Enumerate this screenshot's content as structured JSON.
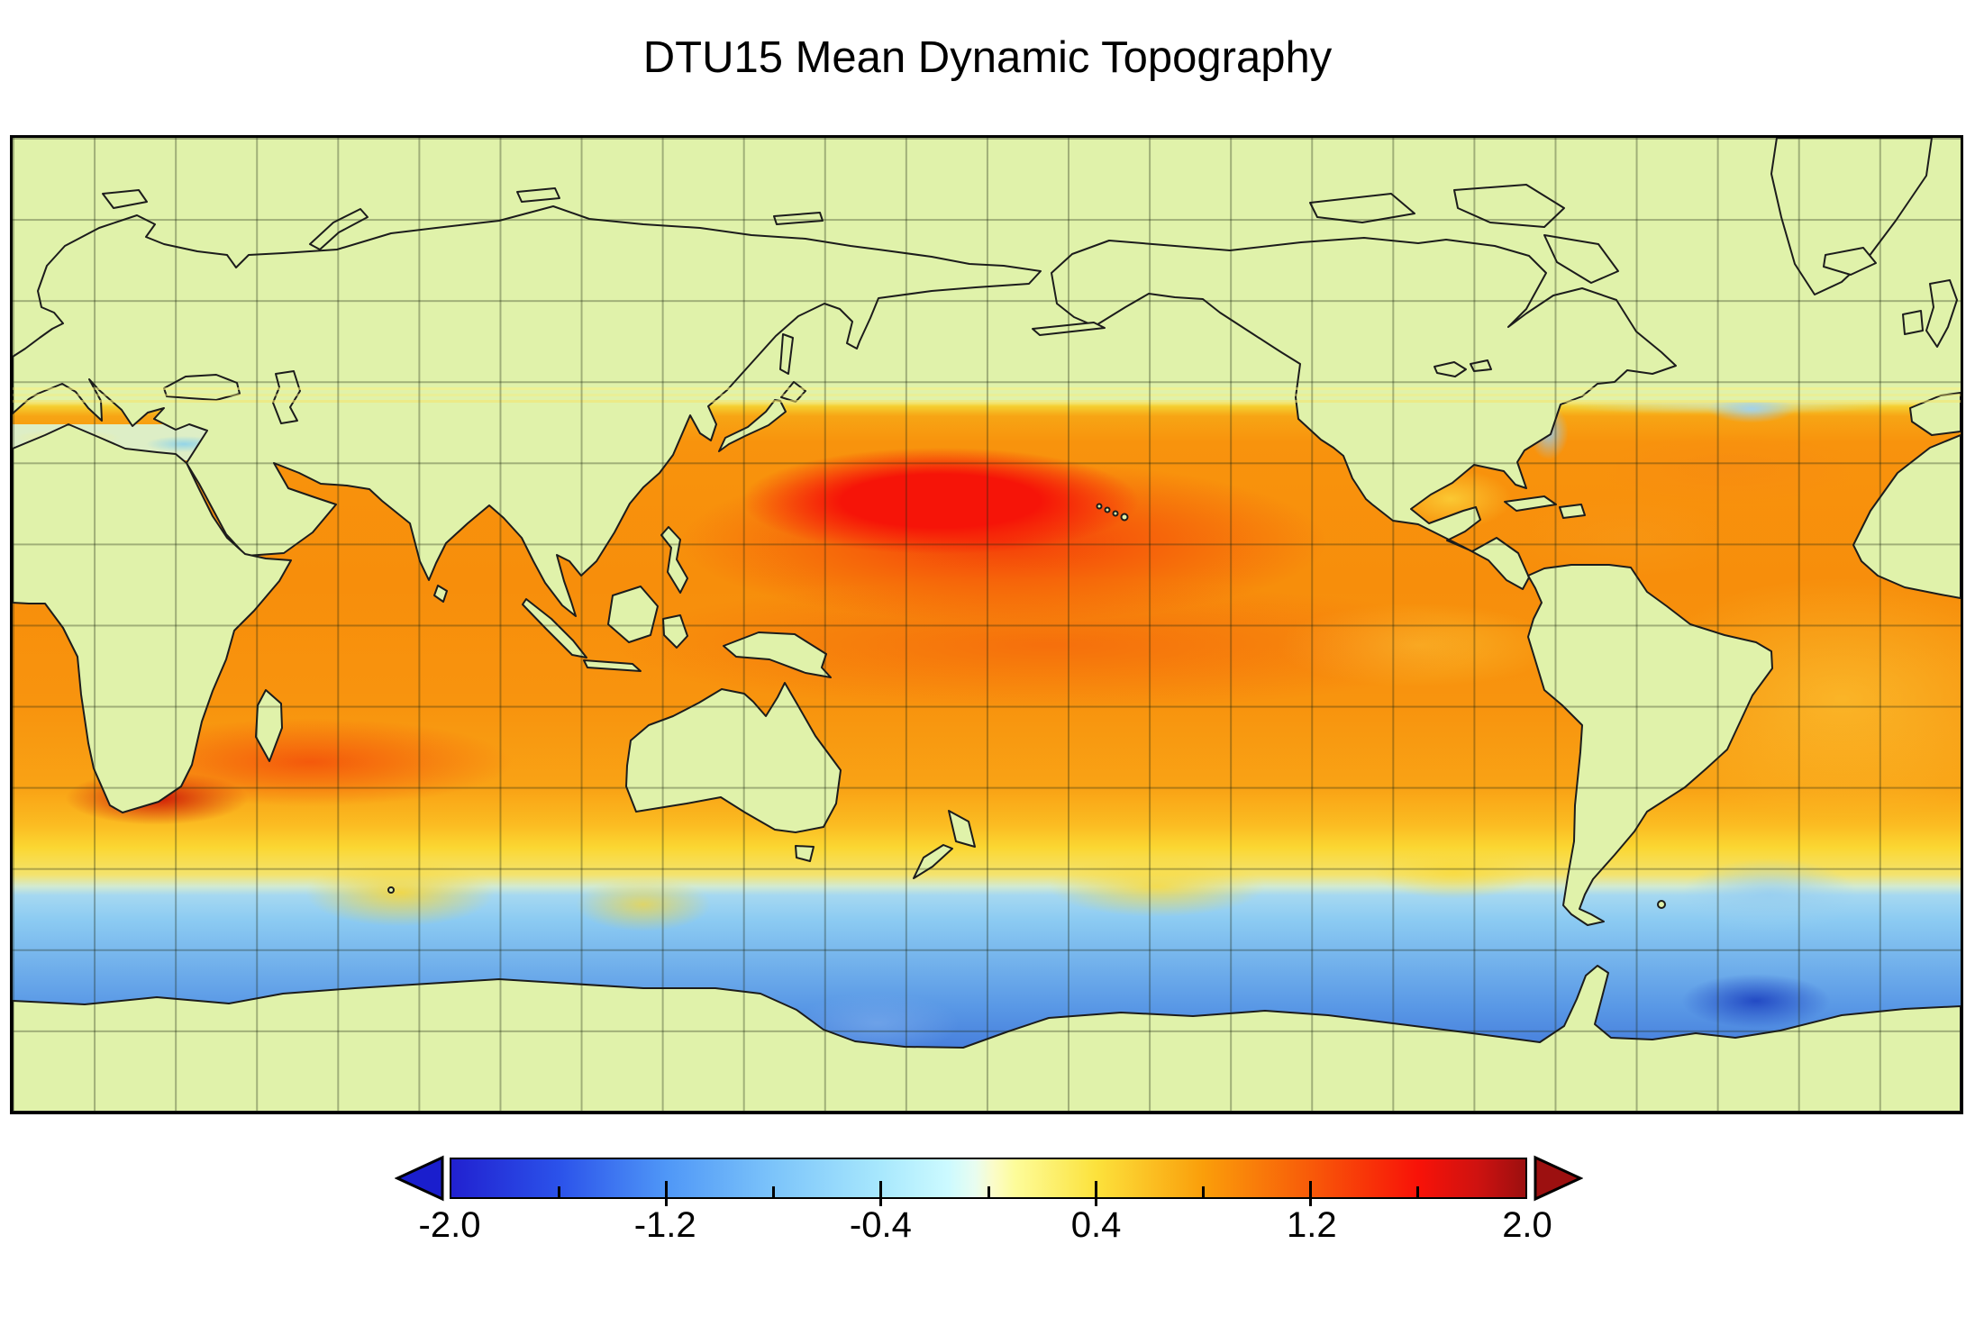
{
  "title": {
    "text": "DTU15 Mean Dynamic Topography"
  },
  "map": {
    "projection": "equirectangular",
    "lon_range_deg": [
      0,
      360
    ],
    "lat_range_deg": [
      -90,
      90
    ],
    "graticule_interval_deg": 15,
    "land_color": "#e0f2aa",
    "nodata_ocean_color": "#e0f2aa",
    "coastline_color": "#1c1c1c",
    "graticule_color": "rgba(25,35,15,0.32)",
    "frame_color": "#000000",
    "field_colors": {
      "high_positive_red": "#f61408",
      "mid_orange": "#f8930d",
      "low_positive_yellow": "#fbd732",
      "negative_light_blue": "#8ccbf2",
      "strong_negative_blue": "#3a6cd2",
      "deep_negative_blue": "#1f3cc4"
    }
  },
  "colorbar": {
    "min": -2.0,
    "max": 2.0,
    "tick_values": [
      -2.0,
      -1.2,
      -0.4,
      0.4,
      1.2,
      2.0
    ],
    "tick_labels": [
      "-2.0",
      "-1.2",
      "-0.4",
      "0.4",
      "1.2",
      "2.0"
    ],
    "minor_tick_values": [
      -1.6,
      -1.2,
      -0.8,
      -0.4,
      0.0,
      0.4,
      0.8,
      1.2,
      1.6
    ],
    "major_tick_values": [
      -1.2,
      -0.4,
      0.4,
      1.2
    ],
    "left_arrow_color": "#1a1ecd",
    "right_arrow_color": "#9c1010",
    "gradient_stops": [
      {
        "value": -2.0,
        "color": "#2121d0"
      },
      {
        "value": -1.6,
        "color": "#2b52ea"
      },
      {
        "value": -1.2,
        "color": "#4f97f7"
      },
      {
        "value": -0.8,
        "color": "#7cc4fa"
      },
      {
        "value": -0.4,
        "color": "#a8e8fd"
      },
      {
        "value": -0.15,
        "color": "#ccfaff"
      },
      {
        "value": -0.05,
        "color": "#e8fdf0"
      },
      {
        "value": 0.02,
        "color": "#fbfcc8"
      },
      {
        "value": 0.1,
        "color": "#fdfc9a"
      },
      {
        "value": 0.4,
        "color": "#fce23c"
      },
      {
        "value": 0.8,
        "color": "#fa9e0a"
      },
      {
        "value": 1.2,
        "color": "#f85a09"
      },
      {
        "value": 1.6,
        "color": "#f81208"
      },
      {
        "value": 1.82,
        "color": "#cf1210"
      },
      {
        "value": 2.0,
        "color": "#9c0f0f"
      }
    ]
  }
}
